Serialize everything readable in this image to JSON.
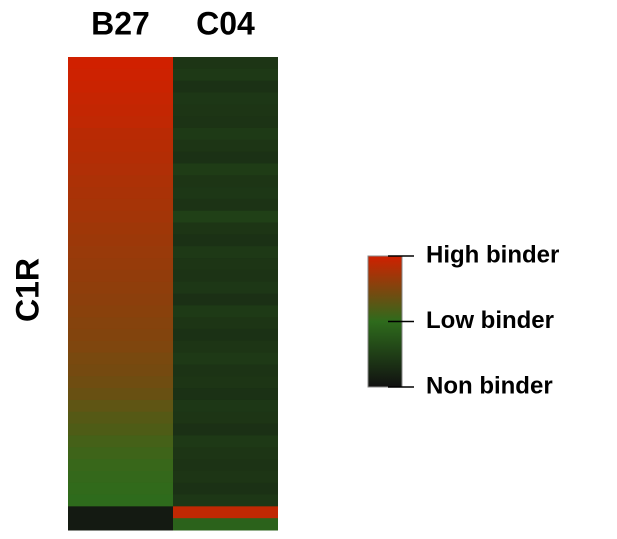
{
  "chart_data": {
    "type": "heatmap",
    "y_label": "C1R",
    "series": [
      {
        "name": "B27",
        "values": [
          1,
          0.99,
          0.98,
          0.97,
          0.96,
          0.95,
          0.93,
          0.92,
          0.91,
          0.9,
          0.89,
          0.88,
          0.87,
          0.86,
          0.85,
          0.84,
          0.83,
          0.82,
          0.81,
          0.8,
          0.79,
          0.78,
          0.77,
          0.76,
          0.75,
          0.73,
          0.72,
          0.7,
          0.68,
          0.65,
          0.62,
          0.6,
          0.57,
          0.55,
          0.53,
          0.52,
          0.51,
          0.5,
          0.05,
          0.05
        ]
      },
      {
        "name": "C04",
        "values": [
          0.2,
          0.22,
          0.18,
          0.21,
          0.2,
          0.19,
          0.23,
          0.2,
          0.18,
          0.24,
          0.2,
          0.21,
          0.19,
          0.26,
          0.2,
          0.18,
          0.22,
          0.2,
          0.19,
          0.21,
          0.17,
          0.23,
          0.2,
          0.18,
          0.2,
          0.22,
          0.19,
          0.2,
          0.18,
          0.21,
          0.2,
          0.17,
          0.22,
          0.2,
          0.19,
          0.2,
          0.18,
          0.21,
          0.95,
          0.45
        ]
      }
    ],
    "clim": [
      0,
      1
    ],
    "colors": [
      "#111111",
      "#2e6b1c",
      "#d02000"
    ],
    "colorbar_ticks": [
      {
        "value": 1,
        "label": "High binder"
      },
      {
        "value": 0.5,
        "label": "Low binder"
      },
      {
        "value": 0,
        "label": "Non binder"
      }
    ]
  }
}
